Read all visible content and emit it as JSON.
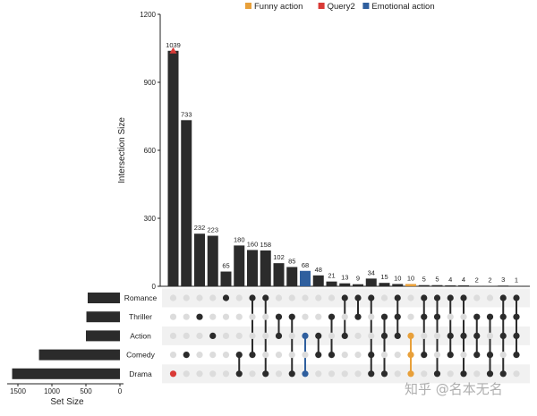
{
  "chart_data": {
    "type": "upset",
    "ylabel": "Intersection Size",
    "xlabel_sets": "Set Size",
    "ylim": [
      0,
      1200
    ],
    "yticks": [
      0,
      300,
      600,
      900,
      1200
    ],
    "set_size_ticks": [
      1500,
      1000,
      500,
      0
    ],
    "set_size_lim": [
      0,
      1600
    ],
    "sets": [
      "Romance",
      "Thriller",
      "Action",
      "Comedy",
      "Drama"
    ],
    "set_sizes": [
      474,
      493,
      500,
      1190,
      1585
    ],
    "intersections": [
      {
        "value": 1039,
        "members": [
          "Drama"
        ],
        "query": "Query2"
      },
      {
        "value": 733,
        "members": [
          "Comedy"
        ]
      },
      {
        "value": 232,
        "members": [
          "Thriller"
        ]
      },
      {
        "value": 223,
        "members": [
          "Action"
        ]
      },
      {
        "value": 65,
        "members": [
          "Romance"
        ]
      },
      {
        "value": 180,
        "members": [
          "Comedy",
          "Drama"
        ]
      },
      {
        "value": 160,
        "members": [
          "Romance",
          "Comedy"
        ]
      },
      {
        "value": 158,
        "members": [
          "Romance",
          "Drama"
        ]
      },
      {
        "value": 102,
        "members": [
          "Thriller",
          "Action"
        ]
      },
      {
        "value": 85,
        "members": [
          "Thriller",
          "Drama"
        ]
      },
      {
        "value": 68,
        "members": [
          "Action",
          "Drama"
        ],
        "query": "Emotional action"
      },
      {
        "value": 48,
        "members": [
          "Action",
          "Comedy"
        ]
      },
      {
        "value": 21,
        "members": [
          "Thriller",
          "Comedy"
        ]
      },
      {
        "value": 13,
        "members": [
          "Romance",
          "Action"
        ]
      },
      {
        "value": 9,
        "members": [
          "Romance",
          "Thriller"
        ]
      },
      {
        "value": 34,
        "members": [
          "Romance",
          "Comedy",
          "Drama"
        ]
      },
      {
        "value": 15,
        "members": [
          "Thriller",
          "Action",
          "Drama"
        ]
      },
      {
        "value": 10,
        "members": [
          "Romance",
          "Thriller",
          "Action"
        ]
      },
      {
        "value": 10,
        "members": [
          "Action",
          "Comedy",
          "Drama"
        ],
        "query": "Funny action"
      },
      {
        "value": 5,
        "members": [
          "Romance",
          "Thriller",
          "Comedy"
        ]
      },
      {
        "value": 5,
        "members": [
          "Romance",
          "Thriller",
          "Drama"
        ]
      },
      {
        "value": 4,
        "members": [
          "Romance",
          "Action",
          "Comedy"
        ]
      },
      {
        "value": 4,
        "members": [
          "Romance",
          "Action",
          "Drama"
        ]
      },
      {
        "value": 2,
        "members": [
          "Thriller",
          "Action",
          "Comedy"
        ]
      },
      {
        "value": 2,
        "members": [
          "Thriller",
          "Comedy",
          "Drama"
        ]
      },
      {
        "value": 3,
        "members": [
          "Romance",
          "Thriller",
          "Action",
          "Drama"
        ]
      },
      {
        "value": 1,
        "members": [
          "Romance",
          "Thriller",
          "Action",
          "Comedy"
        ]
      }
    ],
    "legend": [
      {
        "name": "Funny action",
        "color": "#E8A03A"
      },
      {
        "name": "Query2",
        "color": "#D93A36"
      },
      {
        "name": "Emotional action",
        "color": "#2F5F9E"
      }
    ],
    "legend_position": "top"
  },
  "watermark": "知乎 @名本无名",
  "colors": {
    "bar": "#2b2b2b",
    "dot_off": "#dcdcdc",
    "stripe": "#f1f1f1"
  }
}
